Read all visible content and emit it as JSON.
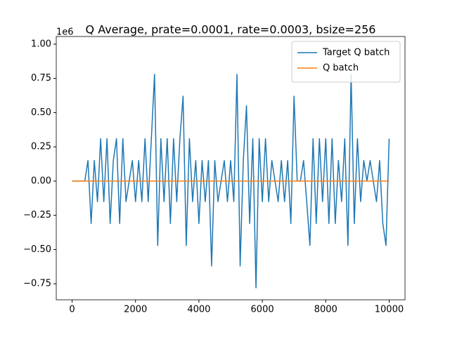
{
  "chart_data": {
    "type": "line",
    "title": "Q Average, prate=0.0001, rate=0.0003, bsize=256",
    "y_offset_label": "1e6",
    "x": [
      0,
      100,
      200,
      300,
      400,
      500,
      600,
      700,
      800,
      900,
      1000,
      1100,
      1200,
      1300,
      1400,
      1500,
      1600,
      1700,
      1800,
      1900,
      2000,
      2100,
      2200,
      2300,
      2400,
      2500,
      2600,
      2700,
      2800,
      2900,
      3000,
      3100,
      3200,
      3300,
      3400,
      3500,
      3600,
      3700,
      3800,
      3900,
      4000,
      4100,
      4200,
      4300,
      4400,
      4500,
      4600,
      4700,
      4800,
      4900,
      5000,
      5100,
      5200,
      5300,
      5400,
      5500,
      5600,
      5700,
      5800,
      5900,
      6000,
      6100,
      6200,
      6300,
      6400,
      6500,
      6600,
      6700,
      6800,
      6900,
      7000,
      7100,
      7200,
      7300,
      7400,
      7500,
      7600,
      7700,
      7800,
      7900,
      8000,
      8100,
      8200,
      8300,
      8400,
      8500,
      8600,
      8700,
      8800,
      8900,
      9000,
      9100,
      9200,
      9300,
      9400,
      9500,
      9600,
      9700,
      9800,
      9900,
      10000
    ],
    "series": [
      {
        "name": "Target Q batch",
        "color": "#1f77b4",
        "values": [
          0,
          0,
          0,
          0,
          0,
          0.15,
          -0.31,
          0.15,
          -0.15,
          0.31,
          -0.15,
          0.31,
          -0.31,
          0.15,
          0.31,
          -0.31,
          0.31,
          -0.15,
          0,
          0.15,
          -0.15,
          0.15,
          -0.15,
          0.31,
          -0.15,
          0.31,
          0.78,
          -0.47,
          0.31,
          -0.15,
          0.31,
          -0.31,
          0.31,
          -0.15,
          0.31,
          0.62,
          -0.47,
          0.31,
          -0.15,
          0.15,
          -0.31,
          0.15,
          -0.15,
          0.15,
          -0.62,
          0.15,
          -0.15,
          0,
          0.15,
          -0.15,
          0.15,
          -0.15,
          0.78,
          -0.62,
          0.15,
          0.55,
          -0.31,
          0.31,
          -0.78,
          0.31,
          -0.15,
          0.31,
          -0.15,
          0.15,
          0,
          -0.15,
          0.15,
          -0.15,
          0.15,
          -0.31,
          0.62,
          0,
          0,
          0.15,
          -0.15,
          -0.47,
          0.31,
          -0.31,
          0.31,
          -0.15,
          0.31,
          -0.31,
          0.31,
          -0.31,
          0.15,
          -0.15,
          0.31,
          -0.47,
          0.78,
          -0.31,
          0.31,
          -0.15,
          0.15,
          0,
          0.15,
          0,
          -0.15,
          0.15,
          -0.31,
          -0.47,
          0.31
        ]
      },
      {
        "name": "Q batch",
        "color": "#ff7f0e",
        "values": [
          0,
          0,
          0,
          0,
          0,
          0,
          0,
          0,
          0,
          0,
          0,
          0,
          0,
          0,
          0,
          0,
          0,
          0,
          0,
          0,
          0,
          0,
          0,
          0,
          0,
          0,
          0,
          0,
          0,
          0,
          0,
          0,
          0,
          0,
          0,
          0,
          0,
          0,
          0,
          0,
          0,
          0,
          0,
          0,
          0,
          0,
          0,
          0,
          0,
          0,
          0,
          0,
          0,
          0,
          0,
          0,
          0,
          0,
          0,
          0,
          0,
          0,
          0,
          0,
          0,
          0,
          0,
          0,
          0,
          0,
          0,
          0,
          0,
          0,
          0,
          0,
          0,
          0,
          0,
          0,
          0,
          0,
          0,
          0,
          0,
          0,
          0,
          0,
          0,
          0,
          0,
          0,
          0,
          0,
          0,
          0,
          0,
          0,
          0,
          0,
          0
        ]
      }
    ],
    "xlim": [
      -500,
      10500
    ],
    "ylim": [
      -0.867,
      1.056
    ],
    "xticks": [
      0,
      2000,
      4000,
      6000,
      8000,
      10000
    ],
    "yticks": [
      {
        "value": -0.75,
        "label": "−0.75"
      },
      {
        "value": -0.5,
        "label": "−0.50"
      },
      {
        "value": -0.25,
        "label": "−0.25"
      },
      {
        "value": 0,
        "label": "0.00"
      },
      0.25,
      {
        "value": 0.5,
        "label": "0.50"
      },
      0.75,
      {
        "value": 1,
        "label": "1.00"
      }
    ],
    "legend": "upper right"
  }
}
